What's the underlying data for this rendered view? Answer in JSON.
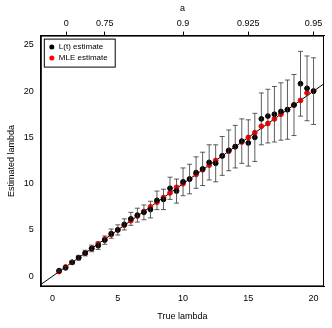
{
  "chart_data": {
    "type": "scatter",
    "xlabel": "True lambda",
    "ylabel": "Estimated lambda",
    "x2label": "a",
    "xlim": [
      -0.9,
      20.8
    ],
    "ylim": [
      -1.1,
      26
    ],
    "xticks": [
      0,
      5,
      10,
      15,
      20
    ],
    "yticks": [
      0,
      5,
      10,
      15,
      20,
      25
    ],
    "x2ticks": [
      {
        "value": 1.05,
        "label": "0"
      },
      {
        "value": 4,
        "label": "0.75"
      },
      {
        "value": 10,
        "label": "0.9"
      },
      {
        "value": 15,
        "label": "0.925"
      },
      {
        "value": 20,
        "label": "0.95"
      }
    ],
    "grid": false,
    "legend": "top-left",
    "x": [
      0.5,
      1,
      1.5,
      2,
      2.5,
      3,
      3.5,
      4,
      4.5,
      5,
      5.5,
      6,
      6.5,
      7,
      7.5,
      8,
      8.5,
      9,
      9.5,
      10,
      10.5,
      11,
      11.5,
      12,
      12.5,
      13,
      13.5,
      14,
      14.5,
      15,
      15.5,
      16,
      16.5,
      17,
      17.5,
      18,
      18.5,
      19,
      19.5,
      20
    ],
    "series": [
      {
        "name": "L(t) estimate",
        "color": "#000000",
        "marker": "circle",
        "values": [
          0.6,
          0.9,
          1.5,
          2.0,
          2.5,
          3.0,
          3.3,
          3.9,
          4.6,
          5.0,
          5.6,
          6.2,
          6.6,
          6.9,
          7.2,
          8.2,
          8.3,
          9.5,
          9.2,
          10.2,
          10.5,
          11.2,
          11.6,
          12.3,
          12.2,
          13.0,
          13.6,
          14.0,
          14.6,
          14.4,
          15.0,
          17.0,
          17.3,
          17.5,
          17.8,
          18.0,
          18.5,
          20.8,
          20.3,
          20.0
        ],
        "error": [
          0.1,
          0.15,
          0.2,
          0.25,
          0.3,
          0.35,
          0.4,
          0.45,
          0.5,
          0.55,
          0.6,
          0.7,
          0.75,
          0.8,
          0.9,
          1.0,
          1.1,
          1.2,
          1.3,
          1.5,
          1.6,
          1.7,
          1.8,
          1.9,
          2.0,
          2.1,
          2.2,
          2.3,
          2.4,
          2.5,
          2.6,
          2.8,
          2.9,
          3.0,
          3.1,
          3.2,
          3.3,
          3.5,
          3.5,
          3.6
        ]
      },
      {
        "name": "MLE estimate",
        "color": "#ff0000",
        "marker": "circle",
        "values": [
          0.5,
          1.0,
          1.5,
          2.0,
          2.5,
          3.0,
          3.5,
          4.0,
          4.5,
          5.0,
          5.5,
          6.0,
          6.5,
          7.0,
          7.5,
          8.0,
          8.5,
          9.0,
          9.6,
          10.0,
          10.5,
          11.0,
          11.5,
          12.0,
          12.5,
          13.0,
          13.5,
          14.0,
          14.5,
          15.0,
          15.5,
          16.2,
          16.5,
          17.0,
          17.5,
          18.0,
          18.5,
          19.0,
          19.8,
          20.0
        ]
      }
    ],
    "reference_line": {
      "slope": 1,
      "intercept": 0,
      "color": "#000000"
    }
  }
}
